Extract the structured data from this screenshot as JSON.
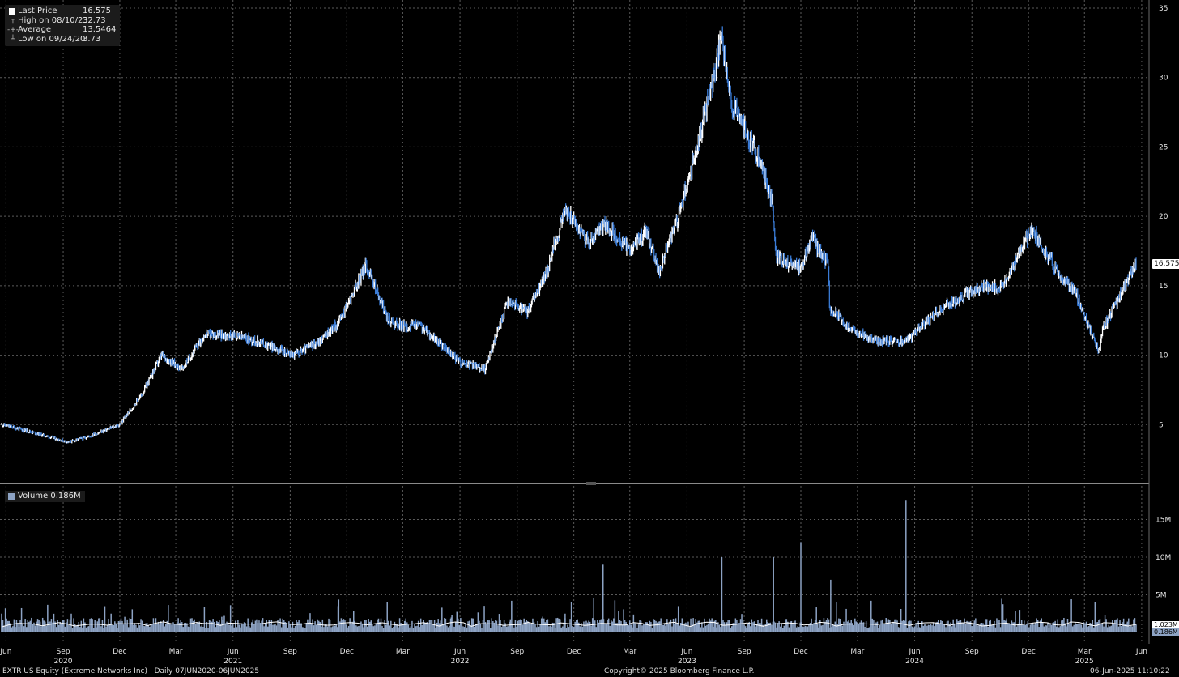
{
  "footer": {
    "ticker": "EXTR US Equity (Extreme Networks Inc)",
    "period": "Daily 07JUN2020-06JUN2025",
    "copyright": "Copyright© 2025 Bloomberg Finance L.P.",
    "timestamp": "06-Jun-2025 11:10:22"
  },
  "legend": {
    "last_price": {
      "label": "Last Price",
      "value": "16.575"
    },
    "high": {
      "label": "High on 08/10/23",
      "value": "32.73"
    },
    "average": {
      "label": "Average",
      "value": "13.5464"
    },
    "low": {
      "label": "Low on 09/24/20",
      "value": "3.73"
    }
  },
  "volume_legend": {
    "label": "Volume",
    "value": "0.186M"
  },
  "tags": {
    "last_price": "16.575",
    "volume_avg": "1.023M",
    "volume_last": "0.186M"
  },
  "colors": {
    "background": "#000000",
    "price_up": "#ffffff",
    "price_down": "#3a7bd5",
    "volume_bar": "#8da3c4",
    "volume_avg_line": "#ffffff",
    "grid": "#5a5a5a"
  },
  "chart_data": [
    {
      "type": "line",
      "series": [
        {
          "name": "Last Price",
          "x": [
            "2020-06-08",
            "2020-07-15",
            "2020-09-24",
            "2020-10-30",
            "2020-12-15",
            "2021-01-20",
            "2021-02-20",
            "2021-03-25",
            "2021-05-01",
            "2021-06-15",
            "2021-07-25",
            "2021-09-20",
            "2021-11-01",
            "2021-12-01",
            "2021-12-20",
            "2022-01-15",
            "2022-02-20",
            "2022-03-20",
            "2022-04-10",
            "2022-06-15",
            "2022-07-25",
            "2022-09-01",
            "2022-10-01",
            "2022-11-01",
            "2022-12-01",
            "2023-01-10",
            "2023-02-01",
            "2023-03-15",
            "2023-04-10",
            "2023-05-01",
            "2023-06-01",
            "2023-07-01",
            "2023-08-10",
            "2023-08-25",
            "2023-10-01",
            "2023-10-30",
            "2023-11-05",
            "2023-12-15",
            "2024-01-01",
            "2024-01-28",
            "2024-01-30",
            "2024-03-01",
            "2024-04-15",
            "2024-06-01",
            "2024-08-01",
            "2024-10-01",
            "2024-11-01",
            "2024-12-20",
            "2025-01-31",
            "2025-03-01",
            "2025-04-07",
            "2025-04-15",
            "2025-06-06"
          ],
          "values": [
            5.0,
            4.6,
            3.73,
            4.2,
            5.0,
            7.2,
            10.0,
            9.0,
            11.5,
            11.4,
            11.0,
            10.0,
            11.0,
            12.3,
            14.0,
            16.5,
            12.5,
            12.0,
            12.2,
            9.5,
            9.0,
            14.0,
            13.0,
            16.0,
            20.5,
            18.0,
            19.5,
            17.5,
            19.0,
            16.0,
            20.0,
            25.0,
            32.73,
            28.0,
            25.0,
            21.0,
            17.0,
            16.3,
            18.5,
            16.5,
            13.5,
            12.0,
            11.0,
            11.0,
            13.5,
            15.0,
            14.8,
            19.0,
            16.0,
            14.5,
            10.2,
            12.0,
            16.575
          ]
        }
      ],
      "ylim": [
        0,
        35
      ],
      "yticks": [
        5,
        10,
        15,
        20,
        25,
        30,
        35
      ],
      "grid": true,
      "legend_position": "top-left"
    },
    {
      "type": "bar",
      "series": [
        {
          "name": "Volume",
          "x": [
            "2020-06-08",
            "2020-12-01",
            "2021-06-01",
            "2021-12-01",
            "2022-06-01",
            "2022-12-01",
            "2023-01-31",
            "2023-06-01",
            "2023-08-10",
            "2023-11-01",
            "2023-12-15",
            "2024-02-01",
            "2024-06-01",
            "2024-12-01",
            "2025-04-01",
            "2025-06-06"
          ],
          "values_millions": [
            2.5,
            2.5,
            2.2,
            3.5,
            2.0,
            2.5,
            9.0,
            3.5,
            10.0,
            10.0,
            12.0,
            7.0,
            17.5,
            3.0,
            4.0,
            0.186
          ]
        }
      ],
      "moving_average_millions": 1.023,
      "ylim_millions": [
        0,
        18
      ],
      "yticks": [
        "5M",
        "10M",
        "15M"
      ],
      "grid": true
    }
  ],
  "x_axis": {
    "months": [
      {
        "label": "Jun",
        "date": "2020-06-15"
      },
      {
        "label": "Sep",
        "date": "2020-09-15"
      },
      {
        "label": "Dec",
        "date": "2020-12-15"
      },
      {
        "label": "Mar",
        "date": "2021-03-15"
      },
      {
        "label": "Jun",
        "date": "2021-06-15"
      },
      {
        "label": "Sep",
        "date": "2021-09-15"
      },
      {
        "label": "Dec",
        "date": "2021-12-15"
      },
      {
        "label": "Mar",
        "date": "2022-03-15"
      },
      {
        "label": "Jun",
        "date": "2022-06-15"
      },
      {
        "label": "Sep",
        "date": "2022-09-15"
      },
      {
        "label": "Dec",
        "date": "2022-12-15"
      },
      {
        "label": "Mar",
        "date": "2023-03-15"
      },
      {
        "label": "Jun",
        "date": "2023-06-15"
      },
      {
        "label": "Sep",
        "date": "2023-09-15"
      },
      {
        "label": "Dec",
        "date": "2023-12-15"
      },
      {
        "label": "Mar",
        "date": "2024-03-15"
      },
      {
        "label": "Jun",
        "date": "2024-06-15"
      },
      {
        "label": "Sep",
        "date": "2024-09-15"
      },
      {
        "label": "Dec",
        "date": "2024-12-15"
      },
      {
        "label": "Mar",
        "date": "2025-03-15"
      },
      {
        "label": "Jun",
        "date": "2025-06-15"
      }
    ],
    "years": [
      {
        "label": "2020",
        "date": "2020-09-15"
      },
      {
        "label": "2021",
        "date": "2021-06-15"
      },
      {
        "label": "2022",
        "date": "2022-06-15"
      },
      {
        "label": "2023",
        "date": "2023-06-15"
      },
      {
        "label": "2024",
        "date": "2024-06-15"
      },
      {
        "label": "2025",
        "date": "2025-03-15"
      }
    ]
  }
}
